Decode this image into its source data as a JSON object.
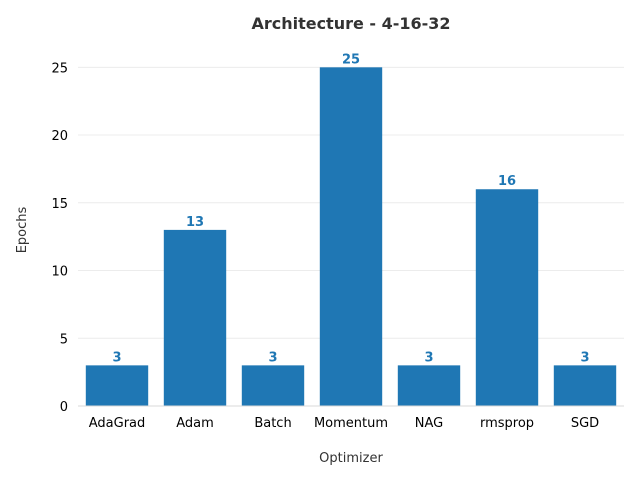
{
  "chart_data": {
    "type": "bar",
    "title": "Architecture - 4-16-32",
    "xlabel": "Optimizer",
    "ylabel": "Epochs",
    "categories": [
      "AdaGrad",
      "Adam",
      "Batch",
      "Momentum",
      "NAG",
      "rmsprop",
      "SGD"
    ],
    "values": [
      3,
      13,
      3,
      25,
      3,
      16,
      3
    ],
    "ylim": [
      0,
      26.5
    ],
    "yticks": [
      0,
      5,
      10,
      15,
      20,
      25
    ],
    "grid": true,
    "legend": "none",
    "bar_color": "#1f77b4",
    "label_color": "#1f77b4"
  }
}
